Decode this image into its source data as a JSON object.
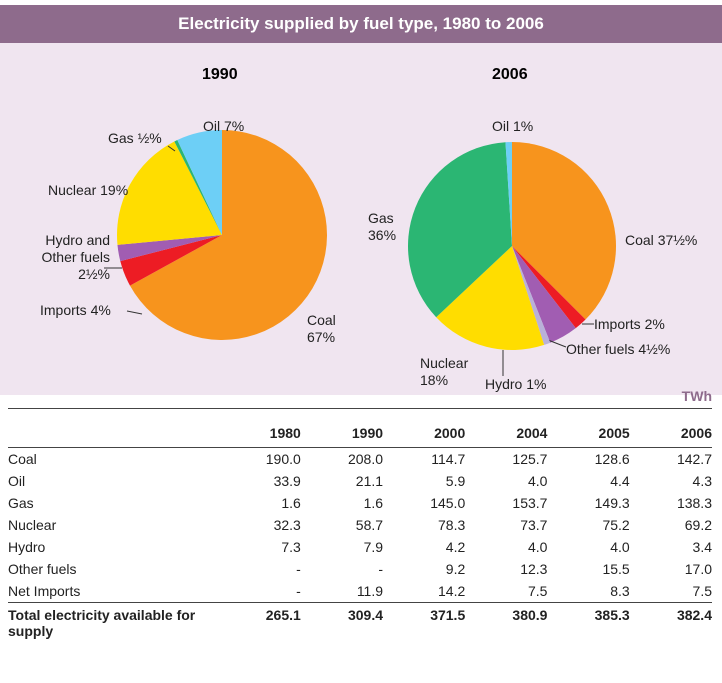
{
  "header": {
    "title": "Electricity supplied by fuel type, 1980 to 2006"
  },
  "chart_data": [
    {
      "type": "pie",
      "title": "1990",
      "categories": [
        "Coal",
        "Imports",
        "Hydro and Other fuels",
        "Nuclear",
        "Gas",
        "Oil"
      ],
      "values": [
        67,
        4,
        2.5,
        19,
        0.5,
        7
      ],
      "value_labels": [
        "67%",
        "4%",
        "2½%",
        "19%",
        "½%",
        "7%"
      ],
      "colors": [
        "#f7941d",
        "#ed1c24",
        "#a15db2",
        "#ffdd00",
        "#2bb673",
        "#6dcff6"
      ]
    },
    {
      "type": "pie",
      "title": "2006",
      "categories": [
        "Coal",
        "Imports",
        "Other fuels",
        "Hydro",
        "Nuclear",
        "Gas",
        "Oil"
      ],
      "values": [
        37.5,
        2,
        4.5,
        1,
        18,
        36,
        1
      ],
      "value_labels": [
        "37½%",
        "2%",
        "4½%",
        "1%",
        "18%",
        "36%",
        "1%"
      ],
      "colors": [
        "#f7941d",
        "#ed1c24",
        "#a15db2",
        "#b9b1d9",
        "#ffdd00",
        "#2bb673",
        "#6dcff6"
      ]
    }
  ],
  "table": {
    "unit": "TWh",
    "columns": [
      "1980",
      "1990",
      "2000",
      "2004",
      "2005",
      "2006"
    ],
    "rows": [
      {
        "label": "Coal",
        "values": [
          "190.0",
          "208.0",
          "114.7",
          "125.7",
          "128.6",
          "142.7"
        ]
      },
      {
        "label": "Oil",
        "values": [
          "33.9",
          "21.1",
          "5.9",
          "4.0",
          "4.4",
          "4.3"
        ]
      },
      {
        "label": "Gas",
        "values": [
          "1.6",
          "1.6",
          "145.0",
          "153.7",
          "149.3",
          "138.3"
        ]
      },
      {
        "label": "Nuclear",
        "values": [
          "32.3",
          "58.7",
          "78.3",
          "73.7",
          "75.2",
          "69.2"
        ]
      },
      {
        "label": "Hydro",
        "values": [
          "7.3",
          "7.9",
          "4.2",
          "4.0",
          "4.0",
          "3.4"
        ]
      },
      {
        "label": "Other fuels",
        "values": [
          "-",
          "-",
          "9.2",
          "12.3",
          "15.5",
          "17.0"
        ]
      },
      {
        "label": "Net Imports",
        "values": [
          "-",
          "11.9",
          "14.2",
          "7.5",
          "8.3",
          "7.5"
        ]
      }
    ],
    "total": {
      "label": "Total electricity available for supply",
      "values": [
        "265.1",
        "309.4",
        "371.5",
        "380.9",
        "385.3",
        "382.4"
      ]
    }
  }
}
